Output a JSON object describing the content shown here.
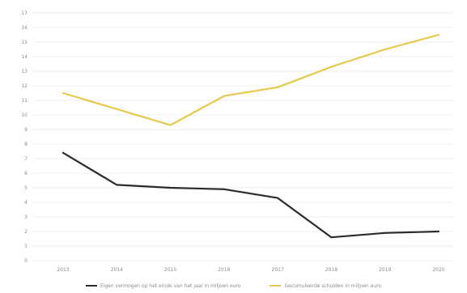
{
  "chart_data": {
    "type": "line",
    "title": "",
    "xlabel": "",
    "ylabel": "",
    "x": [
      "2013",
      "2014",
      "2015",
      "2016",
      "2017",
      "2018",
      "2019",
      "2020"
    ],
    "ylim": [
      0,
      17
    ],
    "yticks": [
      0,
      1,
      2,
      3,
      4,
      5,
      6,
      7,
      8,
      9,
      10,
      11,
      12,
      13,
      14,
      15,
      16,
      17
    ],
    "grid": true,
    "legend": "bottom",
    "series": [
      {
        "name": "Eigen vermogen op het einde van het jaar in miljoen euro",
        "color": "#2b2b2b",
        "values": [
          7.4,
          5.2,
          5.0,
          4.9,
          4.3,
          1.6,
          1.9,
          2.0
        ]
      },
      {
        "name": "Gecumuleerde schulden in miljoen euro",
        "color": "#e8c84a",
        "values": [
          11.5,
          10.4,
          9.3,
          11.3,
          11.9,
          13.3,
          14.5,
          15.5
        ]
      }
    ]
  }
}
